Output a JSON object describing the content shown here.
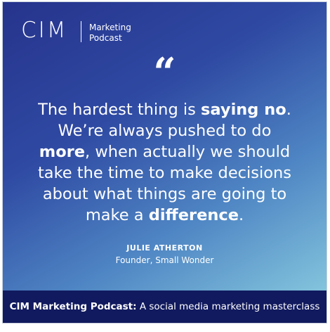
{
  "header": {
    "logo": "CIM",
    "podcast_line1": "Marketing",
    "podcast_line2": "Podcast"
  },
  "quote_mark": "“",
  "quote": {
    "lines": [
      [
        {
          "text": "The hardest thing is ",
          "bold": false
        },
        {
          "text": "saying no",
          "bold": true
        },
        {
          "text": ".",
          "bold": false
        }
      ],
      [
        {
          "text": "We’re always pushed to do",
          "bold": false
        }
      ],
      [
        {
          "text": "more",
          "bold": true
        },
        {
          "text": ", when actually we should",
          "bold": false
        }
      ],
      [
        {
          "text": "take the time to make decisions",
          "bold": false
        }
      ],
      [
        {
          "text": "about what things are going to",
          "bold": false
        }
      ],
      [
        {
          "text": "make a ",
          "bold": false
        },
        {
          "text": "difference",
          "bold": true
        },
        {
          "text": ".",
          "bold": false
        }
      ]
    ]
  },
  "author": {
    "name": "JULIE ATHERTON",
    "role": "Founder, Small Wonder"
  },
  "footer": {
    "title": "CIM Marketing Podcast:",
    "subtitle": " A social media marketing masterclass"
  }
}
